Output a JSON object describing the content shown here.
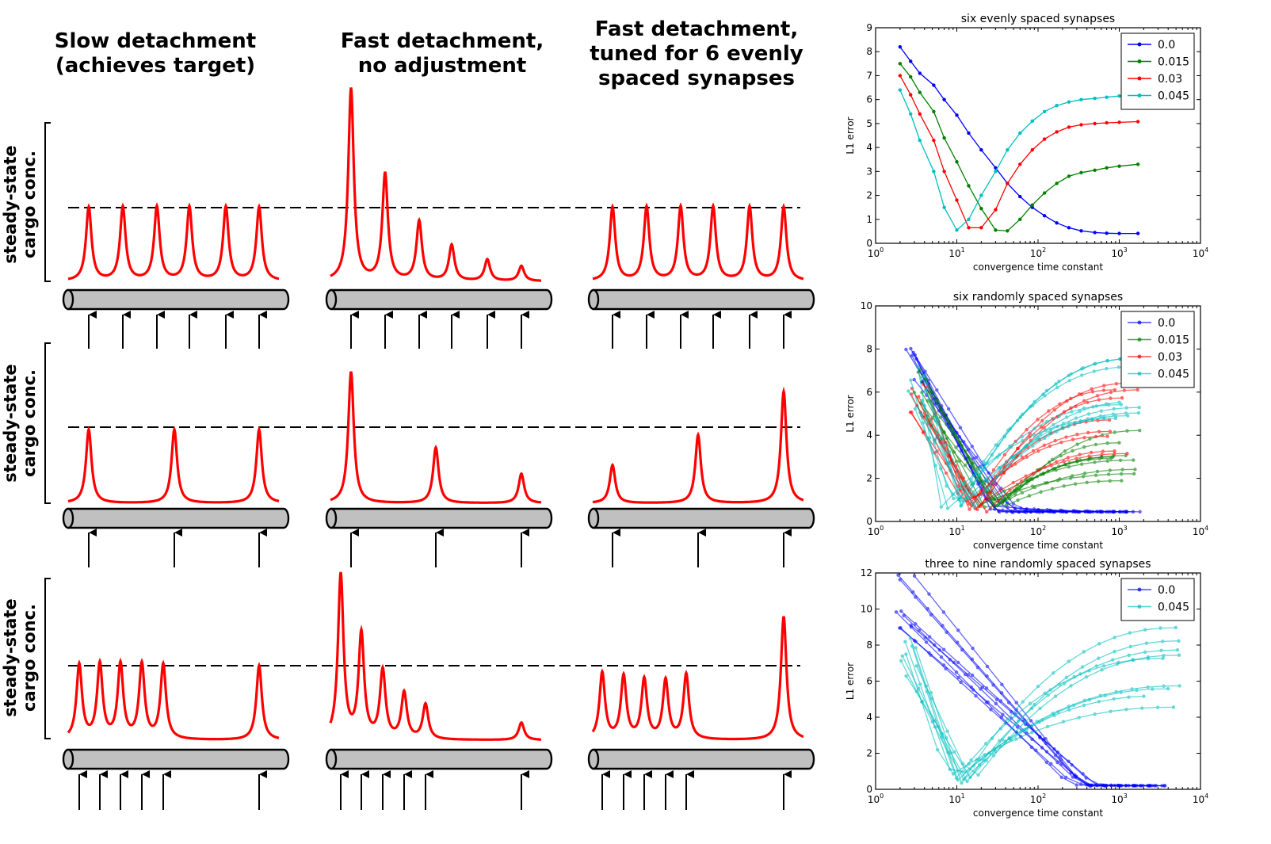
{
  "column_titles": [
    "Slow detachment\n(achieves target)",
    "Fast detachment,\nno adjustment",
    "Fast detachment,\ntuned for 6 evenly\nspaced synapses"
  ],
  "row_ylabel": "steady-state\ncargo conc.",
  "colors": {
    "trace": "#ff0000",
    "neurite_fill": "#c0c0c0",
    "series": [
      "#0000ff",
      "#008000",
      "#ff0000",
      "#00bfbf"
    ]
  },
  "chart_data": [
    {
      "type": "line",
      "title": "six evenly spaced synapses",
      "xlabel": "convergence time constant",
      "ylabel": "L1 error",
      "xscale": "log",
      "xlim": [
        1,
        10000
      ],
      "ylim": [
        0,
        9
      ],
      "xticks": [
        "10^0",
        "10^1",
        "10^2",
        "10^3",
        "10^4"
      ],
      "yticks": [
        0,
        1,
        2,
        3,
        4,
        5,
        6,
        7,
        8,
        9
      ],
      "legend": "top-right",
      "series": [
        {
          "name": "0.0",
          "x": [
            2,
            2.7,
            3.5,
            5.2,
            7,
            10,
            14,
            20,
            30,
            42,
            60,
            85,
            120,
            170,
            240,
            340,
            500,
            700,
            1000,
            1700
          ],
          "y": [
            8.2,
            7.6,
            7.1,
            6.6,
            6.0,
            5.35,
            4.6,
            3.9,
            3.15,
            2.5,
            1.95,
            1.5,
            1.15,
            0.85,
            0.65,
            0.52,
            0.45,
            0.42,
            0.41,
            0.41
          ]
        },
        {
          "name": "0.015",
          "x": [
            2,
            2.7,
            3.5,
            5.2,
            7,
            10,
            14,
            20,
            30,
            42,
            60,
            85,
            120,
            170,
            240,
            340,
            500,
            700,
            1000,
            1700
          ],
          "y": [
            7.5,
            6.95,
            6.3,
            5.5,
            4.4,
            3.4,
            2.4,
            1.45,
            0.55,
            0.52,
            1.0,
            1.6,
            2.1,
            2.5,
            2.8,
            2.95,
            3.05,
            3.15,
            3.22,
            3.3
          ]
        },
        {
          "name": "0.03",
          "x": [
            2,
            2.7,
            3.5,
            5.2,
            7,
            10,
            14,
            20,
            30,
            42,
            60,
            85,
            120,
            170,
            240,
            340,
            500,
            700,
            1000,
            1700
          ],
          "y": [
            7.0,
            6.2,
            5.4,
            4.3,
            3.0,
            1.8,
            0.65,
            0.65,
            1.4,
            2.5,
            3.3,
            3.9,
            4.35,
            4.65,
            4.85,
            4.95,
            5.0,
            5.03,
            5.05,
            5.08
          ]
        },
        {
          "name": "0.045",
          "x": [
            2,
            2.7,
            3.5,
            5.2,
            7,
            10,
            14,
            20,
            30,
            42,
            60,
            85,
            120,
            170,
            240,
            340,
            500,
            700,
            1000,
            1700
          ],
          "y": [
            6.4,
            5.4,
            4.3,
            3.0,
            1.5,
            0.55,
            1.0,
            2.0,
            3.0,
            3.9,
            4.6,
            5.1,
            5.5,
            5.75,
            5.9,
            6.0,
            6.05,
            6.1,
            6.15,
            6.2
          ]
        }
      ]
    },
    {
      "type": "line",
      "title": "six randomly spaced synapses",
      "xlabel": "convergence time constant",
      "ylabel": "L1 error",
      "xscale": "log",
      "xlim": [
        1,
        10000
      ],
      "ylim": [
        0,
        10
      ],
      "xticks": [
        "10^0",
        "10^1",
        "10^2",
        "10^3",
        "10^4"
      ],
      "yticks": [
        0,
        2,
        4,
        6,
        8,
        10
      ],
      "legend": "top-right",
      "series": [
        {
          "name": "0.0",
          "x0": 2.8,
          "ystart": 8.7,
          "ymin": 0.45,
          "yend": 0.45,
          "xmin": 40,
          "xend": 1700
        },
        {
          "name": "0.015",
          "x0": 3.5,
          "ystart": 7.0,
          "ymin": 0.5,
          "yend": 4.3,
          "xmin": 30,
          "xend": 1700
        },
        {
          "name": "0.03",
          "x0": 3.3,
          "ystart": 6.8,
          "ymin": 0.5,
          "yend": 6.8,
          "xmin": 18,
          "xend": 1700
        },
        {
          "name": "0.045",
          "x0": 3.0,
          "ystart": 7.1,
          "ymin": 0.5,
          "yend": 7.6,
          "xmin": 11,
          "xend": 1700
        }
      ]
    },
    {
      "type": "line",
      "title": "three to nine randomly spaced synapses",
      "xlabel": "convergence time constant",
      "ylabel": "L1 error",
      "xscale": "log",
      "xlim": [
        1,
        10000
      ],
      "ylim": [
        0,
        12
      ],
      "xticks": [
        "10^0",
        "10^1",
        "10^2",
        "10^3",
        "10^4"
      ],
      "yticks": [
        0,
        2,
        4,
        6,
        8,
        10,
        12
      ],
      "legend": "top-right",
      "series": [
        {
          "name": "0.0",
          "x0": 2.2,
          "ystart": 12.0,
          "ymin": 0.2,
          "yend": 0.2,
          "xmin": 400,
          "xend": 3500
        },
        {
          "name": "0.045",
          "x0": 2.3,
          "ystart": 8.3,
          "ymin": 0.4,
          "yend": 9.8,
          "xmin": 12,
          "xend": 7000
        }
      ]
    }
  ]
}
